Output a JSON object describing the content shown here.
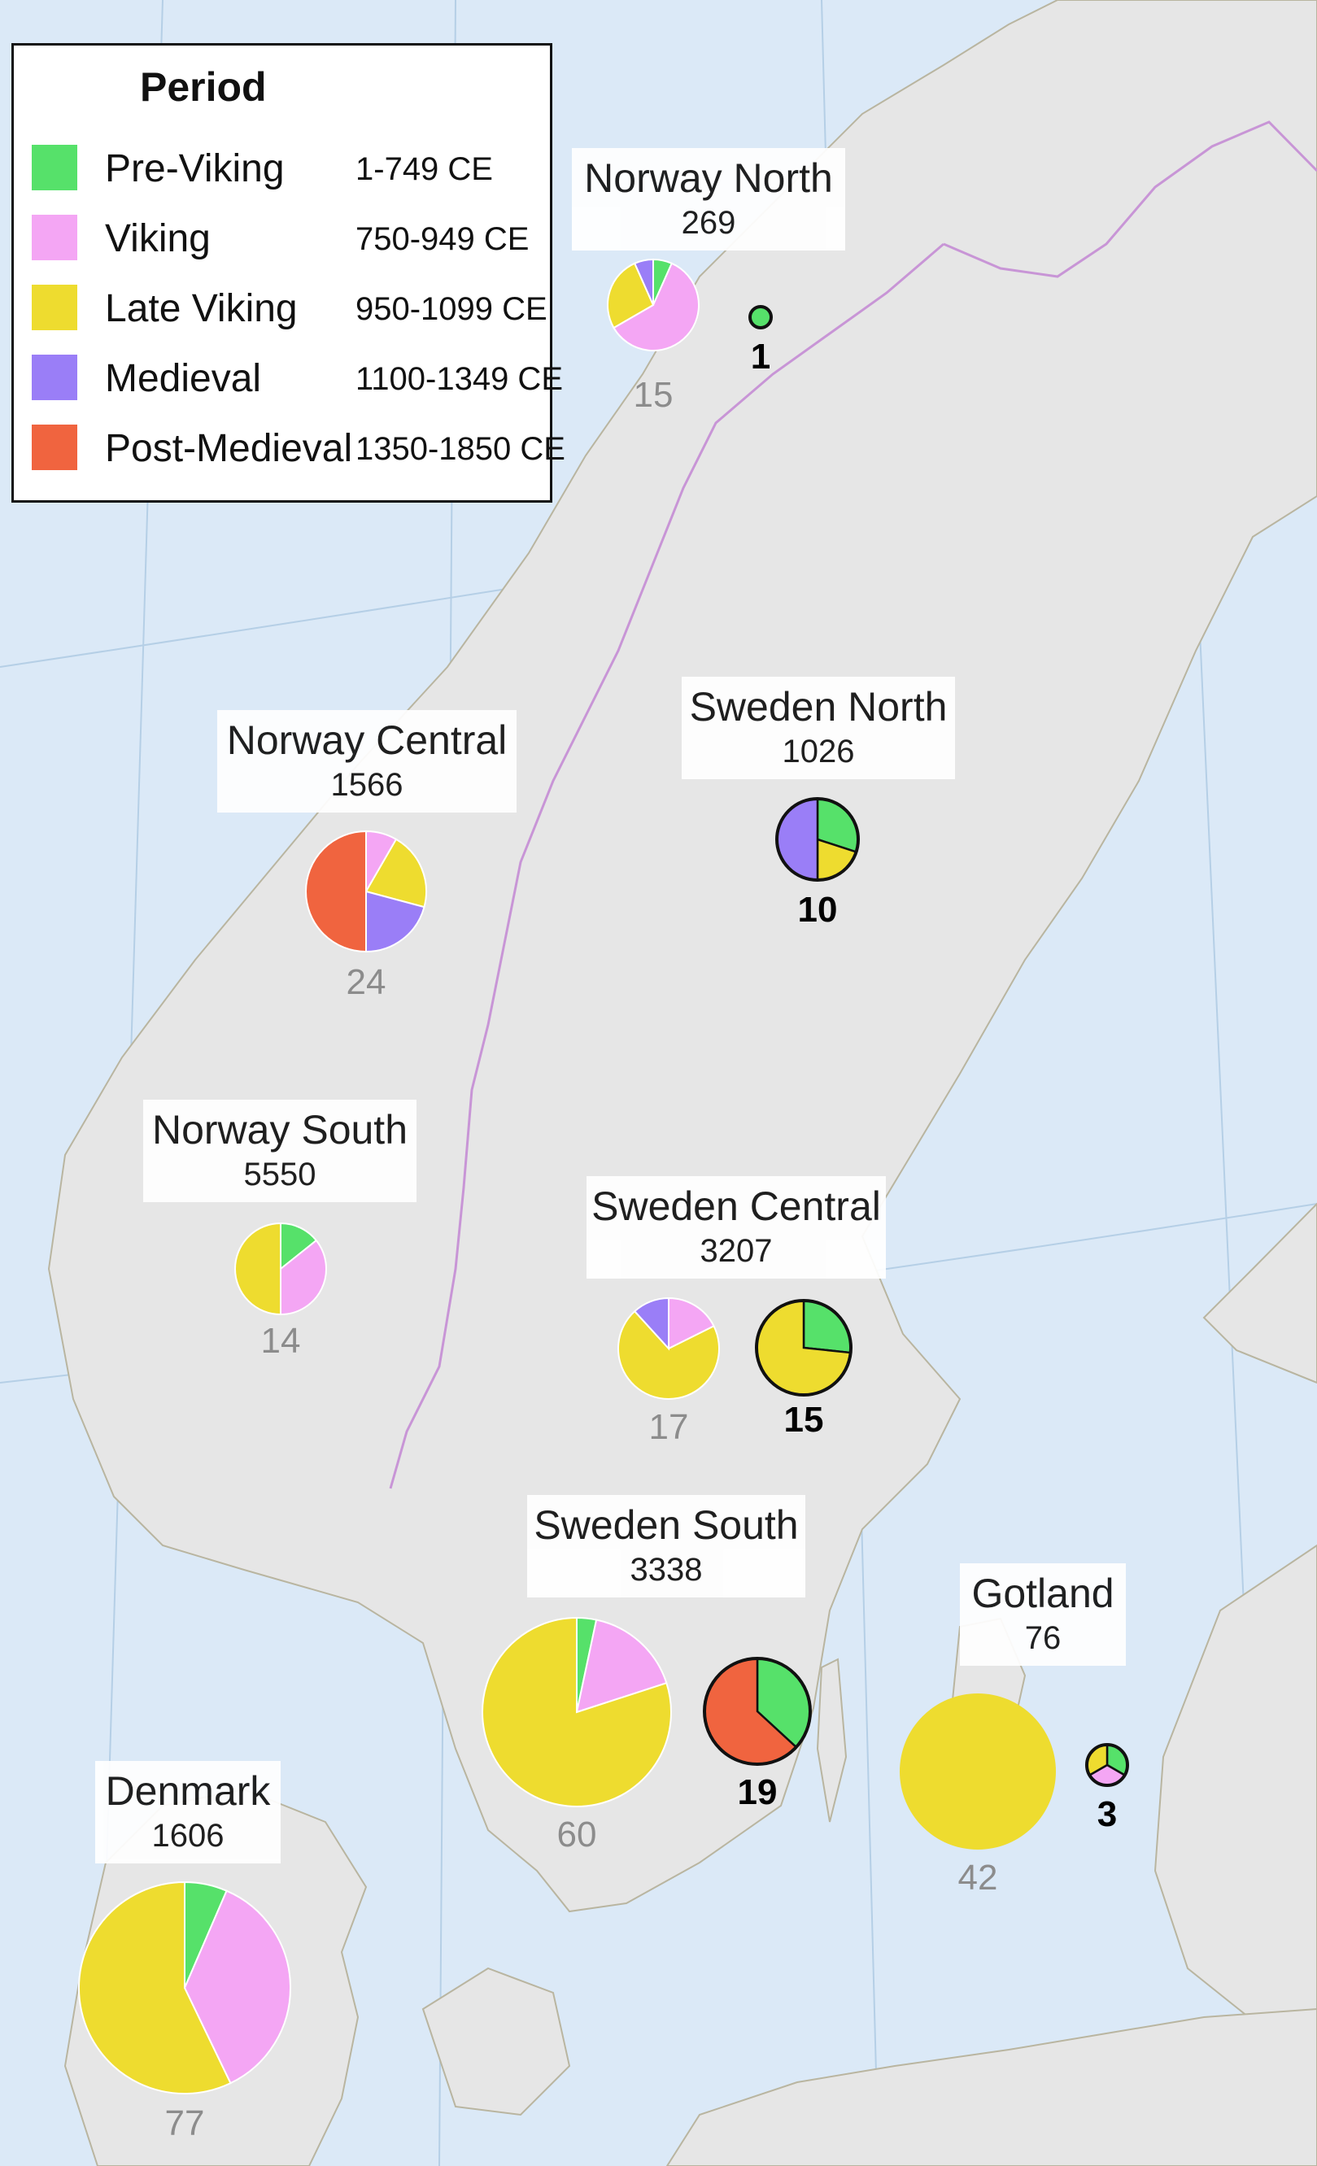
{
  "legend": {
    "title": "Period",
    "items": [
      {
        "name": "Pre-Viking",
        "range": "1-749 CE",
        "color": "#56e16a"
      },
      {
        "name": "Viking",
        "range": "750-949 CE",
        "color": "#f4a6f4"
      },
      {
        "name": "Late Viking",
        "range": "950-1099 CE",
        "color": "#eedc2f"
      },
      {
        "name": "Medieval",
        "range": "1100-1349 CE",
        "color": "#9a7ef7"
      },
      {
        "name": "Post-Medieval",
        "range": "1350-1850 CE",
        "color": "#f0643f"
      }
    ]
  },
  "regions": [
    {
      "name": "Norway North",
      "count": "269"
    },
    {
      "name": "Norway Central",
      "count": "1566"
    },
    {
      "name": "Sweden North",
      "count": "1026"
    },
    {
      "name": "Norway South",
      "count": "5550"
    },
    {
      "name": "Sweden Central",
      "count": "3207"
    },
    {
      "name": "Sweden South",
      "count": "3338"
    },
    {
      "name": "Gotland",
      "count": "76"
    },
    {
      "name": "Denmark",
      "count": "1606"
    }
  ],
  "chart_data": {
    "type": "pie",
    "series_styles": {
      "grey": {
        "label_color": "#8c8c8c",
        "outline": "none"
      },
      "bold": {
        "label_color": "#000000",
        "outline": "#111111"
      }
    },
    "pies": [
      {
        "region": "Norway North",
        "n": "15",
        "style": "grey",
        "slices": [
          {
            "period": "Pre-Viking",
            "value": 1
          },
          {
            "period": "Viking",
            "value": 9
          },
          {
            "period": "Late Viking",
            "value": 4
          },
          {
            "period": "Medieval",
            "value": 1
          }
        ]
      },
      {
        "region": "Norway North",
        "n": "1",
        "style": "bold",
        "slices": [
          {
            "period": "Pre-Viking",
            "value": 1
          }
        ]
      },
      {
        "region": "Norway Central",
        "n": "24",
        "style": "grey",
        "slices": [
          {
            "period": "Viking",
            "value": 2
          },
          {
            "period": "Late Viking",
            "value": 5
          },
          {
            "period": "Medieval",
            "value": 5
          },
          {
            "period": "Post-Medieval",
            "value": 12
          }
        ]
      },
      {
        "region": "Sweden North",
        "n": "10",
        "style": "bold",
        "slices": [
          {
            "period": "Pre-Viking",
            "value": 3
          },
          {
            "period": "Late Viking",
            "value": 2
          },
          {
            "period": "Medieval",
            "value": 5
          }
        ]
      },
      {
        "region": "Norway South",
        "n": "14",
        "style": "grey",
        "slices": [
          {
            "period": "Pre-Viking",
            "value": 2
          },
          {
            "period": "Viking",
            "value": 5
          },
          {
            "period": "Late Viking",
            "value": 7
          }
        ]
      },
      {
        "region": "Sweden Central",
        "n": "17",
        "style": "grey",
        "slices": [
          {
            "period": "Viking",
            "value": 3
          },
          {
            "period": "Late Viking",
            "value": 12
          },
          {
            "period": "Medieval",
            "value": 2
          }
        ]
      },
      {
        "region": "Sweden Central",
        "n": "15",
        "style": "bold",
        "slices": [
          {
            "period": "Pre-Viking",
            "value": 4
          },
          {
            "period": "Late Viking",
            "value": 11
          }
        ]
      },
      {
        "region": "Sweden South",
        "n": "60",
        "style": "grey",
        "slices": [
          {
            "period": "Pre-Viking",
            "value": 2
          },
          {
            "period": "Viking",
            "value": 10
          },
          {
            "period": "Late Viking",
            "value": 48
          }
        ]
      },
      {
        "region": "Sweden South",
        "n": "19",
        "style": "bold",
        "slices": [
          {
            "period": "Pre-Viking",
            "value": 7
          },
          {
            "period": "Post-Medieval",
            "value": 12
          }
        ]
      },
      {
        "region": "Gotland",
        "n": "42",
        "style": "grey",
        "slices": [
          {
            "period": "Late Viking",
            "value": 42
          }
        ]
      },
      {
        "region": "Gotland",
        "n": "3",
        "style": "bold",
        "slices": [
          {
            "period": "Pre-Viking",
            "value": 1
          },
          {
            "period": "Viking",
            "value": 1
          },
          {
            "period": "Late Viking",
            "value": 1
          }
        ]
      },
      {
        "region": "Denmark",
        "n": "77",
        "style": "grey",
        "slices": [
          {
            "period": "Pre-Viking",
            "value": 5
          },
          {
            "period": "Viking",
            "value": 28
          },
          {
            "period": "Late Viking",
            "value": 44
          }
        ]
      }
    ]
  }
}
